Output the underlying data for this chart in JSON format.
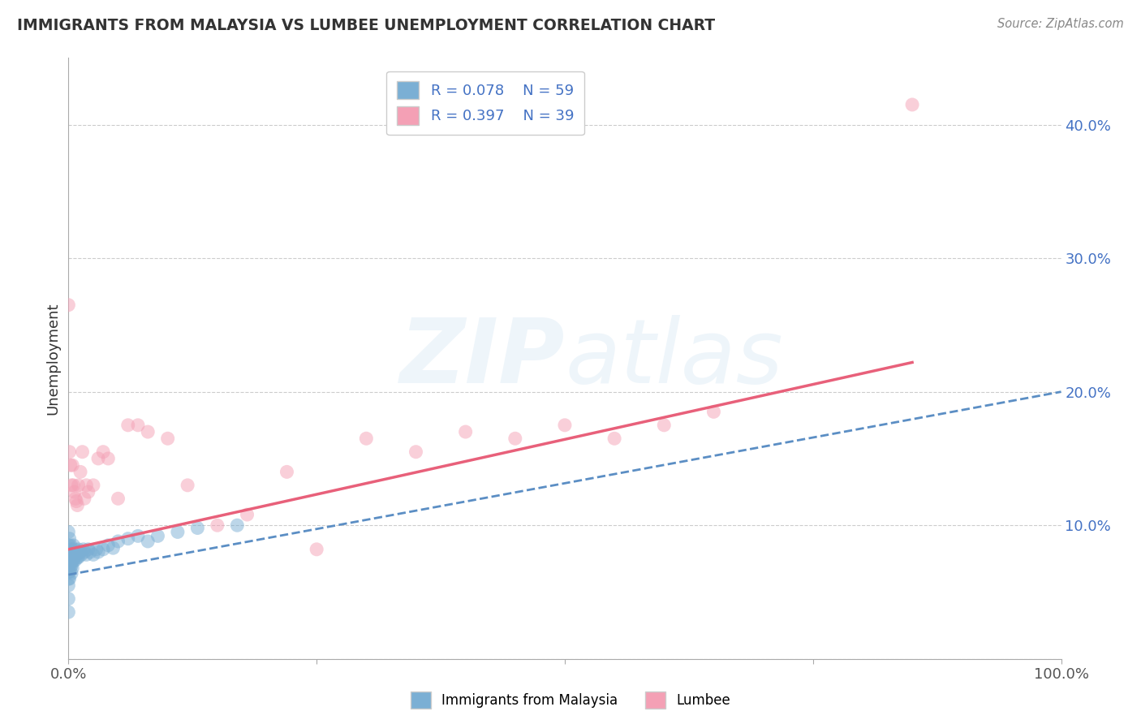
{
  "title": "IMMIGRANTS FROM MALAYSIA VS LUMBEE UNEMPLOYMENT CORRELATION CHART",
  "source_text": "Source: ZipAtlas.com",
  "ylabel": "Unemployment",
  "xlim": [
    0,
    1.0
  ],
  "ylim": [
    0,
    0.45
  ],
  "x_ticks": [
    0.0,
    0.25,
    0.5,
    0.75,
    1.0
  ],
  "x_tick_labels": [
    "0.0%",
    "",
    "",
    "",
    "100.0%"
  ],
  "y_ticks": [
    0.0,
    0.1,
    0.2,
    0.3,
    0.4
  ],
  "y_tick_labels_right": [
    "",
    "10.0%",
    "20.0%",
    "30.0%",
    "40.0%"
  ],
  "grid_color": "#cccccc",
  "background_color": "#ffffff",
  "blue_color": "#7bafd4",
  "pink_color": "#f4a0b5",
  "blue_line_color": "#5b8ec4",
  "pink_line_color": "#e8607a",
  "legend_text_color": "#4472c4",
  "legend_R1": "R = 0.078",
  "legend_N1": "N = 59",
  "legend_R2": "R = 0.397",
  "legend_N2": "N = 39",
  "blue_scatter_x": [
    0.0,
    0.0,
    0.0,
    0.0,
    0.0,
    0.0,
    0.0,
    0.0,
    0.0,
    0.0,
    0.001,
    0.001,
    0.001,
    0.001,
    0.001,
    0.001,
    0.002,
    0.002,
    0.002,
    0.002,
    0.003,
    0.003,
    0.003,
    0.003,
    0.004,
    0.004,
    0.004,
    0.005,
    0.005,
    0.005,
    0.006,
    0.006,
    0.007,
    0.007,
    0.008,
    0.009,
    0.01,
    0.01,
    0.012,
    0.013,
    0.015,
    0.016,
    0.018,
    0.02,
    0.022,
    0.025,
    0.028,
    0.03,
    0.035,
    0.04,
    0.045,
    0.05,
    0.06,
    0.07,
    0.08,
    0.09,
    0.11,
    0.13,
    0.17
  ],
  "blue_scatter_y": [
    0.095,
    0.085,
    0.08,
    0.075,
    0.07,
    0.065,
    0.06,
    0.055,
    0.045,
    0.035,
    0.09,
    0.08,
    0.075,
    0.07,
    0.065,
    0.06,
    0.085,
    0.078,
    0.072,
    0.068,
    0.082,
    0.076,
    0.07,
    0.064,
    0.08,
    0.074,
    0.068,
    0.085,
    0.079,
    0.073,
    0.082,
    0.076,
    0.08,
    0.074,
    0.078,
    0.076,
    0.082,
    0.076,
    0.08,
    0.078,
    0.082,
    0.08,
    0.078,
    0.082,
    0.08,
    0.078,
    0.082,
    0.08,
    0.082,
    0.085,
    0.083,
    0.088,
    0.09,
    0.092,
    0.088,
    0.092,
    0.095,
    0.098,
    0.1
  ],
  "pink_scatter_x": [
    0.0,
    0.001,
    0.002,
    0.003,
    0.004,
    0.005,
    0.006,
    0.007,
    0.008,
    0.009,
    0.01,
    0.012,
    0.014,
    0.016,
    0.018,
    0.02,
    0.025,
    0.03,
    0.035,
    0.04,
    0.05,
    0.06,
    0.07,
    0.08,
    0.1,
    0.12,
    0.15,
    0.18,
    0.22,
    0.25,
    0.3,
    0.35,
    0.4,
    0.45,
    0.5,
    0.55,
    0.6,
    0.65,
    0.85
  ],
  "pink_scatter_y": [
    0.265,
    0.155,
    0.145,
    0.13,
    0.145,
    0.13,
    0.125,
    0.12,
    0.118,
    0.115,
    0.13,
    0.14,
    0.155,
    0.12,
    0.13,
    0.125,
    0.13,
    0.15,
    0.155,
    0.15,
    0.12,
    0.175,
    0.175,
    0.17,
    0.165,
    0.13,
    0.1,
    0.108,
    0.14,
    0.082,
    0.165,
    0.155,
    0.17,
    0.165,
    0.175,
    0.165,
    0.175,
    0.185,
    0.415
  ],
  "blue_line_x0": 0.0,
  "blue_line_x1": 1.0,
  "blue_line_y0": 0.063,
  "blue_line_y1": 0.2,
  "pink_line_x0": 0.0,
  "pink_line_x1": 0.85,
  "pink_line_y0": 0.082,
  "pink_line_y1": 0.222
}
